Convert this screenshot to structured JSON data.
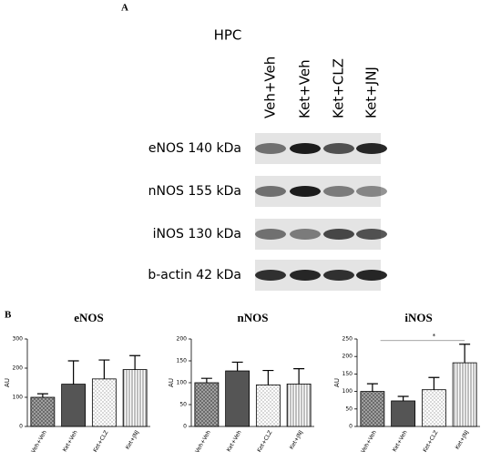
{
  "panel_labels": [
    "A",
    "B"
  ],
  "blot": {
    "title": "HPC",
    "lanes": [
      "Veh+Veh",
      "Ket+Veh",
      "Ket+CLZ",
      "Ket+JNJ"
    ],
    "rows": [
      "eNOS 140 kDa",
      "nNOS 155 kDa",
      "iNOS 130 kDa",
      "b-actin 42 kDa"
    ]
  },
  "chart_data": [
    {
      "type": "bar",
      "title": "eNOS",
      "y_label": "AU",
      "categories": [
        "Veh+Veh",
        "Ket+Veh",
        "Ket+CLZ",
        "Ket+JNJ"
      ],
      "values": [
        100,
        145,
        163,
        195
      ],
      "errors": [
        12,
        80,
        65,
        48
      ],
      "patterns": [
        "crosshatch",
        "solid",
        "dots",
        "stripes"
      ],
      "ylim": [
        0,
        300
      ],
      "yticks": [
        0,
        100,
        200,
        300
      ]
    },
    {
      "type": "bar",
      "title": "nNOS",
      "y_label": "AU",
      "categories": [
        "Veh+Veh",
        "Ket+Veh",
        "Ket+CLZ",
        "Ket+JNJ"
      ],
      "values": [
        100,
        127,
        95,
        97
      ],
      "errors": [
        10,
        20,
        33,
        35
      ],
      "patterns": [
        "crosshatch",
        "solid",
        "dots",
        "stripes"
      ],
      "ylim": [
        0,
        200
      ],
      "yticks": [
        0,
        50,
        100,
        150,
        200
      ]
    },
    {
      "type": "bar",
      "title": "iNOS",
      "y_label": "AU",
      "categories": [
        "Veh+Veh",
        "Ket+Veh",
        "Ket+CLZ",
        "Ket+JNJ"
      ],
      "values": [
        100,
        73,
        105,
        182
      ],
      "errors": [
        22,
        13,
        35,
        53
      ],
      "patterns": [
        "crosshatch",
        "solid",
        "dots",
        "stripes"
      ],
      "ylim": [
        0,
        250
      ],
      "yticks": [
        0,
        50,
        100,
        150,
        200,
        250
      ],
      "significance": [
        {
          "between": [
            1,
            3
          ],
          "label": "*"
        }
      ]
    }
  ]
}
